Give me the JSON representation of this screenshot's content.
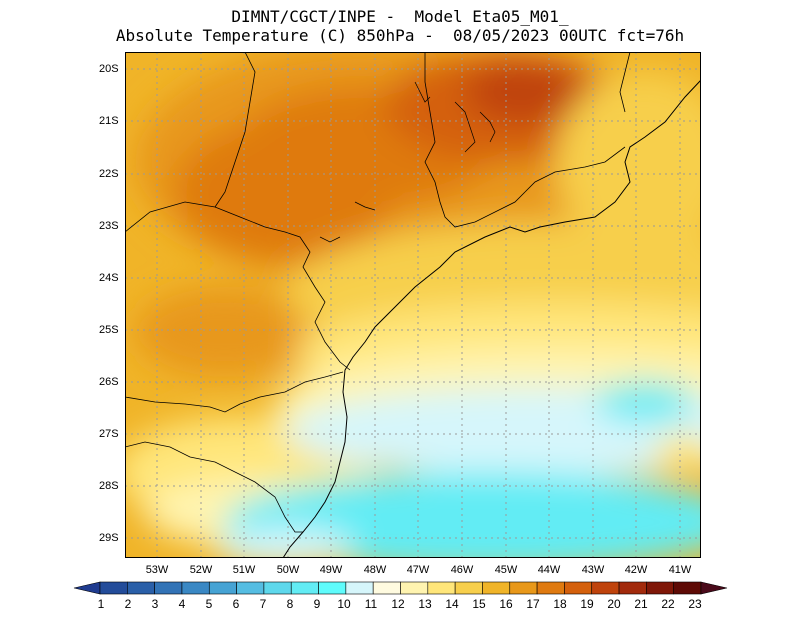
{
  "title": {
    "line1": "DIMNT/CGCT/INPE -  Model Eta05_M01_",
    "line2": "Absolute Temperature (C) 850hPa -  08/05/2023 00UTC fct=76h"
  },
  "map": {
    "lat_labels": [
      "20S",
      "21S",
      "22S",
      "23S",
      "24S",
      "25S",
      "26S",
      "27S",
      "28S",
      "29S"
    ],
    "lon_labels": [
      "53W",
      "52W",
      "51W",
      "50W",
      "49W",
      "48W",
      "47W",
      "46W",
      "45W",
      "44W",
      "43W",
      "42W",
      "41W"
    ]
  },
  "colorbar": {
    "labels": [
      "1",
      "2",
      "3",
      "4",
      "5",
      "6",
      "7",
      "8",
      "9",
      "10",
      "11",
      "12",
      "13",
      "14",
      "15",
      "16",
      "17",
      "18",
      "19",
      "20",
      "21",
      "22",
      "23"
    ],
    "colors": [
      "#1f3b8f",
      "#234c9a",
      "#2a5fa8",
      "#3273b6",
      "#3a88c4",
      "#46a3d4",
      "#55bde2",
      "#5ed8ec",
      "#62ecf4",
      "#5ffcfc",
      "#d6f6fb",
      "#fffbe0",
      "#fff4b0",
      "#ffe67a",
      "#f7cf4c",
      "#f0b428",
      "#e8981a",
      "#df7a10",
      "#d4600c",
      "#bf430c",
      "#a22a0c",
      "#7f1708",
      "#5e0a05",
      "#4a0a1a"
    ]
  }
}
